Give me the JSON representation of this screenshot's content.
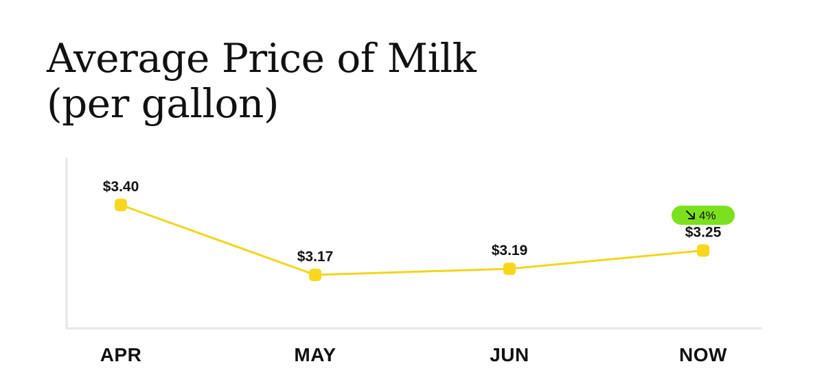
{
  "header": {
    "title_line1": "Average Price of Milk",
    "title_line2": "(per gallon)"
  },
  "colors": {
    "line": "#F5D41B",
    "marker": "#F9D71C",
    "badge": "#7BE11E",
    "axis": "#E6E6E6",
    "text": "#111111"
  },
  "chart_data": {
    "type": "line",
    "categories": [
      "APR",
      "MAY",
      "JUN",
      "NOW"
    ],
    "values": [
      3.4,
      3.17,
      3.19,
      3.25
    ],
    "data_labels": [
      "$3.40",
      "$3.17",
      "$3.19",
      "$3.25"
    ],
    "title": "Average Price of Milk (per gallon)",
    "xlabel": "",
    "ylabel": "",
    "grid": false,
    "annotations": [
      {
        "category": "NOW",
        "icon": "arrow-down-right-icon",
        "text": "4%"
      }
    ]
  }
}
